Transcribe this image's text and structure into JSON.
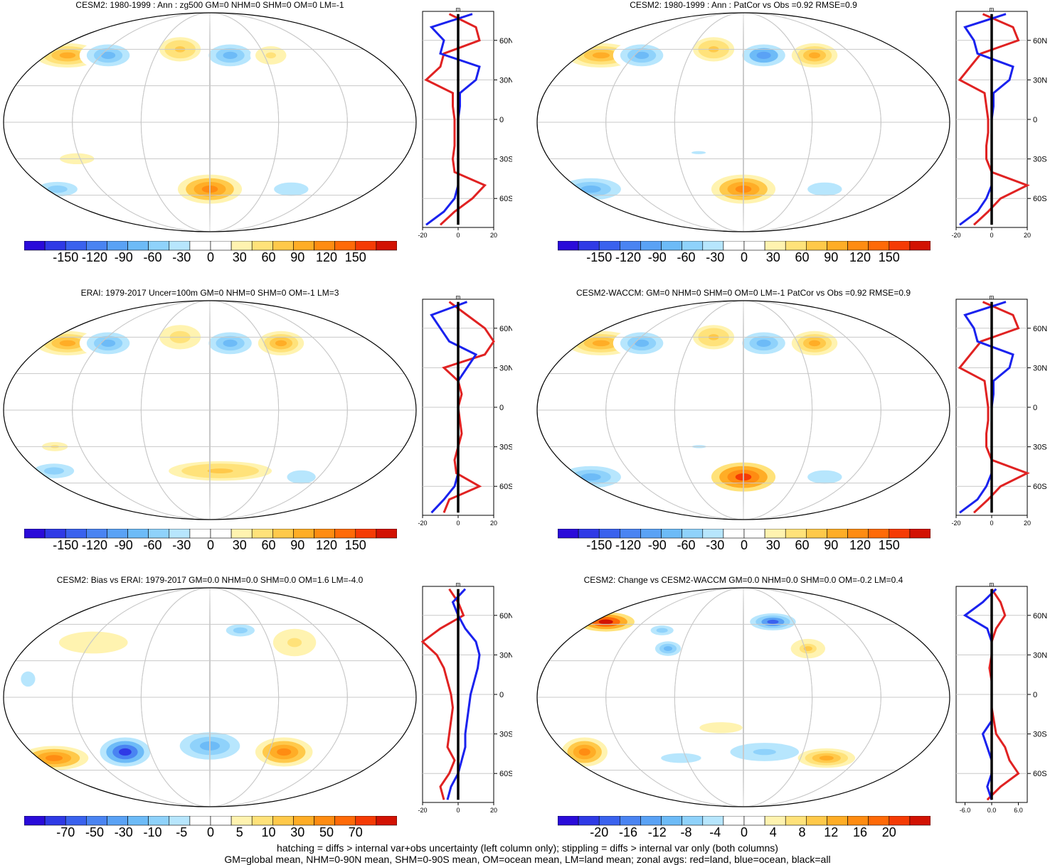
{
  "colors": {
    "scale": [
      "#2a0bd9",
      "#2f3ae6",
      "#3a62ee",
      "#4a84f2",
      "#5aa2f5",
      "#6dbbf7",
      "#8fd2fb",
      "#b7e6fd",
      "#ffffff",
      "#ffffff",
      "#fff3b0",
      "#ffe27a",
      "#ffc94a",
      "#ffad26",
      "#ff8c12",
      "#ff6a08",
      "#f53b05",
      "#d21203"
    ],
    "land": "#e02222",
    "ocean": "#1a22ee",
    "all": "#000000"
  },
  "chart_data": [
    {
      "type": "map",
      "id": "p1",
      "title": "CESM2: 1980-1999 : Ann : zg500 GM=0 NHM=0 SHM=0 OM=0 LM=-1",
      "colorbar_ticks": [
        "-150",
        "-120",
        "-90",
        "-60",
        "-30",
        "0",
        "30",
        "60",
        "90",
        "120",
        "150"
      ],
      "lat_ticks": [
        "60N",
        "30N",
        "0",
        "30S",
        "60S"
      ],
      "x_ticks": [
        "-20",
        "0",
        "20"
      ],
      "x_range": [
        -20,
        20
      ],
      "units": "m",
      "anomalies": [
        {
          "lon": -140,
          "lat": 55,
          "rx": 28,
          "ry": 10,
          "v": 60
        },
        {
          "lon": -100,
          "lat": 55,
          "rx": 25,
          "ry": 12,
          "v": -60
        },
        {
          "lon": -30,
          "lat": 60,
          "rx": 18,
          "ry": 10,
          "v": 50
        },
        {
          "lon": 20,
          "lat": 55,
          "rx": 25,
          "ry": 12,
          "v": -70
        },
        {
          "lon": 60,
          "lat": 55,
          "rx": 18,
          "ry": 10,
          "v": 30
        },
        {
          "lon": -150,
          "lat": -55,
          "rx": 35,
          "ry": 12,
          "v": -50
        },
        {
          "lon": 0,
          "lat": -55,
          "rx": 28,
          "ry": 12,
          "v": 90
        },
        {
          "lon": 80,
          "lat": -55,
          "rx": 30,
          "ry": 11,
          "v": -40
        },
        {
          "lon": -120,
          "lat": -30,
          "rx": 20,
          "ry": 6,
          "v": 20
        }
      ],
      "zonal": {
        "lat": [
          80,
          70,
          60,
          50,
          40,
          30,
          20,
          10,
          0,
          -10,
          -20,
          -30,
          -40,
          -50,
          -60,
          -70,
          -80
        ],
        "land": [
          -5,
          10,
          12,
          -8,
          -10,
          -18,
          -3,
          -3,
          -2,
          -2,
          -2,
          -3,
          -2,
          15,
          8,
          -2,
          -10
        ],
        "ocean": [
          8,
          -15,
          -8,
          -10,
          12,
          10,
          1,
          1,
          0,
          0,
          0,
          0,
          0,
          0,
          -2,
          -8,
          -18
        ],
        "all": [
          0,
          0,
          0,
          0,
          0,
          0,
          0,
          0,
          0,
          0,
          0,
          0,
          0,
          0,
          0,
          0,
          0
        ]
      }
    },
    {
      "type": "map",
      "id": "p2",
      "title": "CESM2: 1980-1999 : Ann : PatCor vs Obs =0.92 RMSE=0.9",
      "colorbar_ticks": [
        "-150",
        "-120",
        "-90",
        "-60",
        "-30",
        "0",
        "30",
        "60",
        "90",
        "120",
        "150"
      ],
      "lat_ticks": [
        "60N",
        "30N",
        "0",
        "30S",
        "60S"
      ],
      "x_ticks": [
        "-20",
        "0",
        "20"
      ],
      "x_range": [
        -20,
        20
      ],
      "units": "m",
      "anomalies": [
        {
          "lon": -140,
          "lat": 55,
          "rx": 30,
          "ry": 10,
          "v": 60
        },
        {
          "lon": -100,
          "lat": 55,
          "rx": 25,
          "ry": 12,
          "v": -70
        },
        {
          "lon": -30,
          "lat": 60,
          "rx": 18,
          "ry": 10,
          "v": 50
        },
        {
          "lon": 20,
          "lat": 55,
          "rx": 25,
          "ry": 12,
          "v": -80
        },
        {
          "lon": 70,
          "lat": 55,
          "rx": 20,
          "ry": 10,
          "v": 60
        },
        {
          "lon": -150,
          "lat": -55,
          "rx": 35,
          "ry": 12,
          "v": -70
        },
        {
          "lon": 0,
          "lat": -55,
          "rx": 28,
          "ry": 12,
          "v": 90
        },
        {
          "lon": 80,
          "lat": -55,
          "rx": 30,
          "ry": 11,
          "v": -40
        },
        {
          "lon": -40,
          "lat": -25,
          "rx": 25,
          "ry": 5,
          "v": -30
        }
      ],
      "zonal": {
        "lat": [
          80,
          70,
          60,
          50,
          40,
          30,
          20,
          10,
          0,
          -10,
          -20,
          -30,
          -40,
          -50,
          -60,
          -70,
          -80
        ],
        "land": [
          -5,
          12,
          15,
          -6,
          -12,
          -18,
          -4,
          -3,
          -2,
          -2,
          -3,
          -3,
          0,
          20,
          5,
          -2,
          -10
        ],
        "ocean": [
          8,
          -15,
          -10,
          -8,
          12,
          10,
          1,
          1,
          0,
          0,
          0,
          0,
          0,
          0,
          -3,
          -8,
          -18
        ],
        "all": [
          0,
          0,
          0,
          0,
          0,
          0,
          0,
          0,
          0,
          0,
          0,
          0,
          0,
          0,
          0,
          0,
          0
        ]
      }
    },
    {
      "type": "map",
      "id": "p3",
      "title": "ERAI: 1979-2017 Uncer=100m GM=0 NHM=0 SHM=0 OM=-1 LM=3",
      "colorbar_ticks": [
        "-150",
        "-120",
        "-90",
        "-60",
        "-30",
        "0",
        "30",
        "60",
        "90",
        "120",
        "150"
      ],
      "lat_ticks": [
        "60N",
        "30N",
        "0",
        "30S",
        "60S"
      ],
      "x_ticks": [
        "-20",
        "0",
        "20"
      ],
      "x_range": [
        -20,
        20
      ],
      "units": "m",
      "anomalies": [
        {
          "lon": -140,
          "lat": 55,
          "rx": 28,
          "ry": 10,
          "v": 60
        },
        {
          "lon": -100,
          "lat": 55,
          "rx": 25,
          "ry": 12,
          "v": -70
        },
        {
          "lon": -30,
          "lat": 60,
          "rx": 18,
          "ry": 10,
          "v": 40
        },
        {
          "lon": 20,
          "lat": 55,
          "rx": 25,
          "ry": 12,
          "v": -70
        },
        {
          "lon": 70,
          "lat": 55,
          "rx": 20,
          "ry": 10,
          "v": 60
        },
        {
          "lon": -150,
          "lat": -50,
          "rx": 35,
          "ry": 12,
          "v": -50
        },
        {
          "lon": 10,
          "lat": -50,
          "rx": 45,
          "ry": 8,
          "v": 50
        },
        {
          "lon": 90,
          "lat": -55,
          "rx": 25,
          "ry": 11,
          "v": -40
        },
        {
          "lon": -140,
          "lat": -30,
          "rx": 15,
          "ry": 5,
          "v": 30
        }
      ],
      "zonal": {
        "lat": [
          80,
          70,
          60,
          50,
          40,
          30,
          20,
          10,
          0,
          -10,
          -20,
          -30,
          -40,
          -50,
          -60,
          -70,
          -80
        ],
        "land": [
          -5,
          5,
          15,
          20,
          15,
          -8,
          0,
          2,
          0,
          1,
          2,
          0,
          -2,
          -1,
          12,
          -5,
          -8
        ],
        "ocean": [
          5,
          -15,
          -10,
          -5,
          10,
          5,
          0,
          0,
          0,
          0,
          0,
          0,
          0,
          0,
          -2,
          -8,
          -15
        ],
        "all": [
          0,
          0,
          0,
          0,
          0,
          0,
          0,
          0,
          0,
          0,
          0,
          0,
          0,
          0,
          0,
          0,
          0
        ]
      }
    },
    {
      "type": "map",
      "id": "p4",
      "title": "CESM2-WACCM: GM=0 NHM=0 SHM=0 OM=0 LM=-1 PatCor vs Obs =0.92 RMSE=0.9",
      "colorbar_ticks": [
        "-150",
        "-120",
        "-90",
        "-60",
        "-30",
        "0",
        "30",
        "60",
        "90",
        "120",
        "150"
      ],
      "lat_ticks": [
        "60N",
        "30N",
        "0",
        "30S",
        "60S"
      ],
      "x_ticks": [
        "-20",
        "0",
        "20"
      ],
      "x_range": [
        -20,
        20
      ],
      "units": "m",
      "anomalies": [
        {
          "lon": -140,
          "lat": 55,
          "rx": 30,
          "ry": 10,
          "v": 60
        },
        {
          "lon": -100,
          "lat": 55,
          "rx": 25,
          "ry": 12,
          "v": -70
        },
        {
          "lon": -30,
          "lat": 60,
          "rx": 18,
          "ry": 10,
          "v": 50
        },
        {
          "lon": 20,
          "lat": 55,
          "rx": 25,
          "ry": 12,
          "v": -70
        },
        {
          "lon": 70,
          "lat": 55,
          "rx": 20,
          "ry": 10,
          "v": 60
        },
        {
          "lon": -150,
          "lat": -55,
          "rx": 35,
          "ry": 12,
          "v": -60
        },
        {
          "lon": 0,
          "lat": -55,
          "rx": 28,
          "ry": 12,
          "v": 120
        },
        {
          "lon": 80,
          "lat": -55,
          "rx": 30,
          "ry": 11,
          "v": -40
        },
        {
          "lon": -40,
          "lat": -30,
          "rx": 25,
          "ry": 5,
          "v": -30
        }
      ],
      "zonal": {
        "lat": [
          80,
          70,
          60,
          50,
          40,
          30,
          20,
          10,
          0,
          -10,
          -20,
          -30,
          -40,
          -50,
          -60,
          -70,
          -80
        ],
        "land": [
          -5,
          12,
          15,
          -6,
          -12,
          -18,
          -4,
          -3,
          -2,
          -2,
          -3,
          -3,
          0,
          20,
          5,
          -2,
          -10
        ],
        "ocean": [
          8,
          -15,
          -10,
          -8,
          12,
          10,
          1,
          1,
          0,
          0,
          0,
          0,
          0,
          0,
          -3,
          -8,
          -18
        ],
        "all": [
          0,
          0,
          0,
          0,
          0,
          0,
          0,
          0,
          0,
          0,
          0,
          0,
          0,
          0,
          0,
          0,
          0
        ]
      }
    },
    {
      "type": "map",
      "id": "p5",
      "title": "CESM2: Bias vs ERAI: 1979-2017 GM=0.0 NHM=0.0 SHM=0.0 OM=1.6 LM=-4.0",
      "colorbar_ticks": [
        "-70",
        "-50",
        "-30",
        "-10",
        "-5",
        "0",
        "5",
        "10",
        "30",
        "50",
        "70"
      ],
      "lat_ticks": [
        "60N",
        "30N",
        "0",
        "30S",
        "60S"
      ],
      "x_ticks": [
        "-20",
        "0",
        "20"
      ],
      "x_range": [
        -20,
        20
      ],
      "units": "m",
      "anomalies": [
        {
          "lon": -160,
          "lat": 15,
          "rx": 25,
          "ry": 25,
          "v": -12
        },
        {
          "lon": -110,
          "lat": 45,
          "rx": 40,
          "ry": 12,
          "v": 8
        },
        {
          "lon": -50,
          "lat": 20,
          "rx": 20,
          "ry": 12,
          "v": -10
        },
        {
          "lon": 30,
          "lat": 55,
          "rx": 25,
          "ry": 10,
          "v": -20
        },
        {
          "lon": 80,
          "lat": 45,
          "rx": 25,
          "ry": 15,
          "v": 12
        },
        {
          "lon": -150,
          "lat": -50,
          "rx": 30,
          "ry": 10,
          "v": 40
        },
        {
          "lon": -80,
          "lat": -45,
          "rx": 22,
          "ry": 12,
          "v": -60
        },
        {
          "lon": 0,
          "lat": -40,
          "rx": 35,
          "ry": 15,
          "v": -30
        },
        {
          "lon": 70,
          "lat": -45,
          "rx": 25,
          "ry": 12,
          "v": 40
        },
        {
          "lon": 30,
          "lat": -15,
          "rx": 40,
          "ry": 8,
          "v": -10
        }
      ],
      "zonal": {
        "lat": [
          80,
          70,
          60,
          50,
          40,
          30,
          20,
          10,
          0,
          -10,
          -20,
          -30,
          -40,
          -50,
          -60,
          -70,
          -80
        ],
        "land": [
          -5,
          0,
          3,
          -10,
          -20,
          -12,
          -8,
          -6,
          -4,
          -3,
          -4,
          -5,
          -6,
          -2,
          -5,
          -10,
          -8
        ],
        "ocean": [
          4,
          -3,
          0,
          4,
          10,
          12,
          11,
          9,
          7,
          6,
          5,
          4,
          4,
          2,
          0,
          -4,
          -6
        ],
        "all": [
          0,
          0,
          0,
          0,
          0,
          0,
          0,
          0,
          0,
          0,
          0,
          0,
          0,
          0,
          0,
          0,
          0
        ]
      }
    },
    {
      "type": "map",
      "id": "p6",
      "title": "CESM2: Change vs CESM2-WACCM GM=0.0 NHM=0.0 SHM=0.0 OM=-0.2 LM=0.4",
      "colorbar_ticks": [
        "-20",
        "-16",
        "-12",
        "-8",
        "-4",
        "0",
        "4",
        "8",
        "12",
        "16",
        "20"
      ],
      "lat_ticks": [
        "60N",
        "30N",
        "0",
        "30S",
        "60S"
      ],
      "x_ticks": [
        "-6.0",
        "0.0",
        "6.0"
      ],
      "x_range": [
        -8,
        8
      ],
      "units": "m",
      "anomalies": [
        {
          "lon": -140,
          "lat": 62,
          "rx": 25,
          "ry": 8,
          "v": 18
        },
        {
          "lon": -80,
          "lat": 55,
          "rx": 20,
          "ry": 8,
          "v": -6
        },
        {
          "lon": -70,
          "lat": 40,
          "rx": 15,
          "ry": 8,
          "v": -8
        },
        {
          "lon": 30,
          "lat": 62,
          "rx": 20,
          "ry": 7,
          "v": -15
        },
        {
          "lon": 60,
          "lat": 40,
          "rx": 15,
          "ry": 8,
          "v": 6
        },
        {
          "lon": -150,
          "lat": -45,
          "rx": 20,
          "ry": 12,
          "v": 12
        },
        {
          "lon": -60,
          "lat": -50,
          "rx": 35,
          "ry": 8,
          "v": -5
        },
        {
          "lon": 20,
          "lat": -45,
          "rx": 40,
          "ry": 10,
          "v": -7
        },
        {
          "lon": 80,
          "lat": -50,
          "rx": 25,
          "ry": 8,
          "v": 8
        },
        {
          "lon": -20,
          "lat": -25,
          "rx": 25,
          "ry": 6,
          "v": 3
        }
      ],
      "zonal": {
        "lat": [
          80,
          70,
          60,
          50,
          40,
          30,
          20,
          10,
          0,
          -10,
          -20,
          -30,
          -40,
          -50,
          -60,
          -70,
          -80
        ],
        "land": [
          0,
          2,
          3,
          1,
          0,
          0,
          -0.5,
          0,
          0,
          0,
          0.5,
          1,
          3,
          4,
          6,
          2,
          -1
        ],
        "ocean": [
          1,
          -2,
          -6,
          -1,
          0,
          0,
          0,
          0,
          0,
          0,
          0,
          -2,
          -1,
          0,
          0,
          -1,
          0
        ],
        "all": [
          0,
          0,
          0,
          0,
          0,
          0,
          0,
          0,
          0,
          0,
          0,
          0,
          0,
          0,
          0,
          0,
          0
        ]
      }
    }
  ],
  "footer": {
    "line1": "hatching = diffs > internal var+obs uncertainty (left column only); stippling = diffs > internal var only (both columns)",
    "line2": "GM=global mean, NHM=0-90N mean, SHM=0-90S mean, OM=ocean mean, LM=land mean; zonal avgs: red=land, blue=ocean, black=all"
  }
}
